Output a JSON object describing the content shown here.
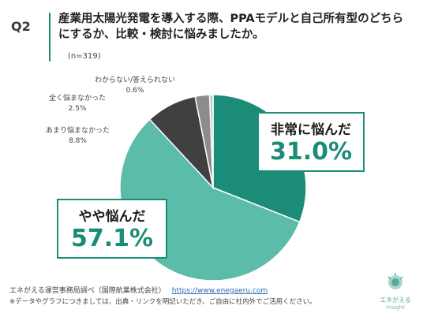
{
  "question": {
    "number": "Q2",
    "text": "産業用太陽光発電を導入する際、PPAモデルと自己所有型のどちらにするか、比較・検討に悩みましたか。",
    "sample": "(n=319)"
  },
  "chart_data": {
    "type": "pie",
    "start": "12 o'clock, clockwise",
    "slices": [
      {
        "label": "非常に悩んだ",
        "value": 31.0,
        "value_label": "31.0%",
        "color": "#1a8c78"
      },
      {
        "label": "やや悩んだ",
        "value": 57.1,
        "value_label": "57.1%",
        "color": "#5cbcaa"
      },
      {
        "label": "あまり悩まなかった",
        "value": 8.8,
        "value_label": "8.8%",
        "color": "#404040"
      },
      {
        "label": "全く悩まなかった",
        "value": 2.5,
        "value_label": "2.5%",
        "color": "#8c8c8c"
      },
      {
        "label": "わからない/答えられない",
        "value": 0.6,
        "value_label": "0.6%",
        "color": "#c8c8c8"
      }
    ]
  },
  "footer": {
    "source": "エネがえる運営事務局調べ（国際航業株式会社）",
    "link": "https://www.enegaeru.com",
    "note": "※データやグラフにつきましては、出典・リンクを明記いただき、ご自由に社内外でご活用ください。"
  },
  "logo": {
    "text": "エネがえる",
    "sub": "Insight"
  }
}
